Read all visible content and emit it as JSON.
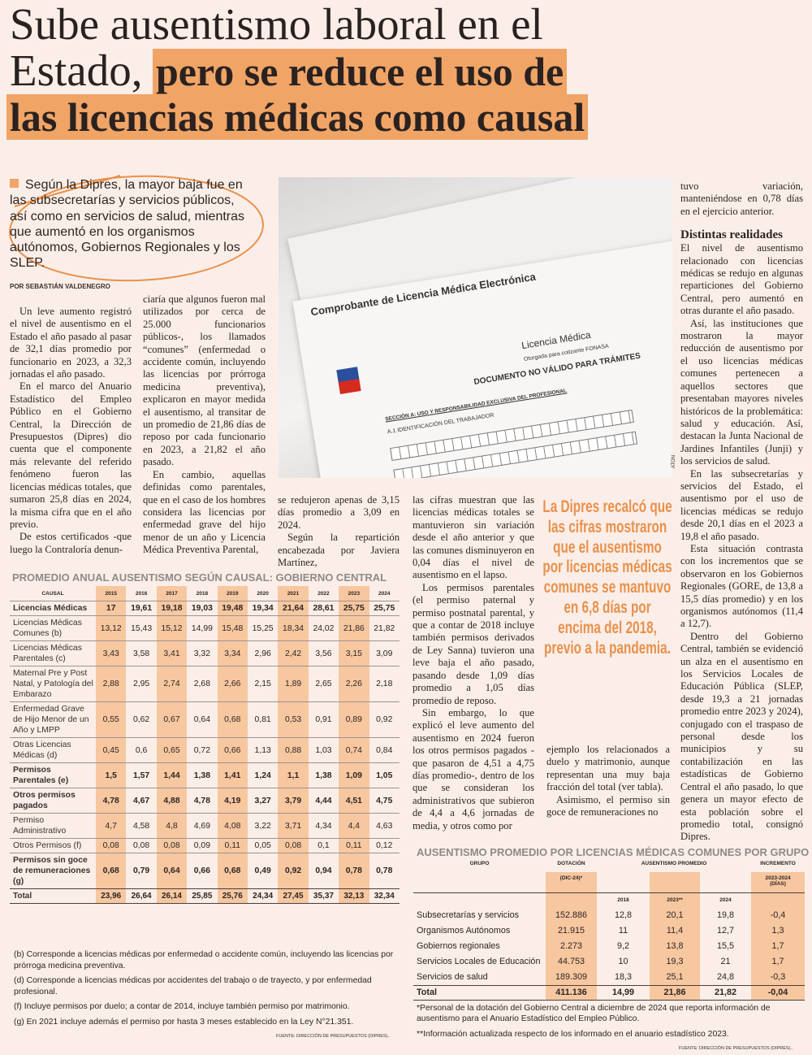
{
  "headline": {
    "line1": "Sube ausentismo laboral en el",
    "line2_plain": "Estado,",
    "line2_highlight": "pero se reduce el uso de",
    "line3_highlight": "las licencias médicas como causal"
  },
  "lede": "Según la Dipres, la mayor baja fue en las subsecretarías y servicios públicos, así como en servicios de salud, mientras que aumentó en los organismos autónomos, Gobiernos Regionales y los SLEP.",
  "byline": "POR SEBASTIÁN VALDENEGRO",
  "photo": {
    "doc_title": "Comprobante de Licencia Médica Electrónica",
    "doc_label": "Licencia Médica",
    "doc_sub": "Otorgada para cotizante FONASA",
    "doc_warning": "DOCUMENTO NO VÁLIDO PARA TRÁMITES",
    "doc_section": "SECCIÓN A: USO Y RESPONSABILIDAD EXCLUSIVA DEL PROFESIONAL",
    "doc_id": "A.1 IDENTIFICACIÓN DEL TRABAJADOR",
    "credit": "ATON"
  },
  "body": {
    "col1": [
      "Un leve aumento registró el nivel de ausentismo en el Estado el año pasado al pasar de 32,1 días promedio por funcionario en 2023, a 32,3 jornadas el año pasado.",
      "En el marco del Anuario Estadístico del Empleo Público en el Gobierno Central, la Dirección de Presupuestos (Dipres) dio cuenta que el componente más relevante del referido fenómeno fueron las licencias médicas totales, que sumaron 25,8 días en 2024, la misma cifra que en el año previo.",
      "De estos certificados -que luego la Contraloría denun-"
    ],
    "col2": [
      "ciaría que algunos fueron mal utilizados por cerca de 25.000 funcionarios públicos-, los llamados “comunes” (enfermedad o accidente común, incluyendo las licencias por prórroga medicina preventiva), explicaron en mayor medida el ausentismo, al transitar de un promedio de 21,86 días de reposo por cada funcionario en 2023, a 21,82 el año pasado.",
      "En cambio, aquellas definidas como parentales, que en el caso de los hombres considera las licencias por enfermedad grave del hijo menor de un año y Licencia Médica Preventiva Parental,"
    ],
    "col3": [
      "se redujeron apenas de 3,15 días promedio a 3,09 en 2024.",
      "Según la repartición encabezada por Javiera Martínez,"
    ],
    "col4": [
      "las cifras muestran que las licencias médicas totales se mantuvieron sin variación desde el año anterior y que las comunes disminuyeron en 0,04 días el nivel de ausentismo en el lapso.",
      "Los permisos parentales (el permiso paternal y permiso postnatal parental, y que a contar de 2018 incluye también permisos derivados de Ley Sanna) tuvieron una leve baja el año pasado, pasando desde 1,09 días promedio a 1,05 días promedio de reposo.",
      "Sin embargo, lo que explicó el leve aumento del ausentismo en 2024 fueron los otros permisos pagados -que pasaron de 4,51 a 4,75 días promedio-, dentro de los que se consideran los administrativos que subieron de 4,4 a 4,6 jornadas de media, y otros como por"
    ],
    "col5": [
      "ejemplo los relacionados a duelo y matrimonio, aunque representan una muy baja fracción del total (ver tabla).",
      "Asimismo, el permiso sin goce de remuneraciones no"
    ],
    "col6_intro": [
      "tuvo variación, manteniéndose en 0,78 días en el ejercicio anterior."
    ],
    "subhead": "Distintas realidades",
    "col6": [
      "El nivel de ausentismo relacionado con licencias médicas se redujo en algunas reparticiones del Gobierno Central, pero aumentó en otras durante el año pasado.",
      "Así, las instituciones que mostraron la mayor reducción de ausentismo por el uso licencias médicas comunes pertenecen a aquellos sectores que presentaban mayores niveles históricos de la problemática: salud y educación. Así, destacan la Junta Nacional de Jardines Infantiles (Junji) y los servicios de salud.",
      "En las subsecretarías y servicios del Estado, el ausentismo por el uso de licencias médicas se redujo desde 20,1 días en el 2023 a 19,8 el año pasado.",
      "Esta situación contrasta con los incrementos que se observaron en los Gobiernos Regionales (GORE, de 13,8 a 15,5 días promedio) y en los organismos autónomos (11,4 a 12,7).",
      "Dentro del Gobierno Central, también se evidenció un alza en el ausentismo en los Servicios Locales de Educación Pública (SLEP, desde 19,3 a 21 jornadas promedio entre 2023 y 2024), conjugado con el traspaso de personal desde los municipios y su contabilización en las estadísticas de Gobierno Central el año pasado, lo que genera un mayor efecto de esta población sobre el promedio total, consignó Dipres."
    ]
  },
  "pull_quote": "La Dipres recalcó que las cifras mostraron que el ausentismo por licencias médicas comunes se mantuvo en 6,8 días por encima del 2018, previo a la pandemia.",
  "table1": {
    "title": "PROMEDIO ANUAL AUSENTISMO SEGÚN CAUSAL: GOBIERNO CENTRAL",
    "col_header": "CAUSAL",
    "years": [
      "2015",
      "2016",
      "2017",
      "2018",
      "2019",
      "2020",
      "2021",
      "2022",
      "2023",
      "2024"
    ],
    "rows": [
      {
        "label": "Licencias Médicas",
        "bold": true,
        "values": [
          "17",
          "19,61",
          "19,18",
          "19,03",
          "19,48",
          "19,34",
          "21,64",
          "28,61",
          "25,75",
          "25,75"
        ]
      },
      {
        "label": "Licencias Médicas Comunes (b)",
        "bold": false,
        "values": [
          "13,12",
          "15,43",
          "15,12",
          "14,99",
          "15,48",
          "15,25",
          "18,34",
          "24,02",
          "21,86",
          "21,82"
        ]
      },
      {
        "label": "Licencias Médicas Parentales (c)",
        "bold": false,
        "values": [
          "3,43",
          "3,58",
          "3,41",
          "3,32",
          "3,34",
          "2,96",
          "2,42",
          "3,56",
          "3,15",
          "3,09"
        ]
      },
      {
        "label": "Maternal Pre y Post Natal, y Patología del Embarazo",
        "bold": false,
        "values": [
          "2,88",
          "2,95",
          "2,74",
          "2,68",
          "2,66",
          "2,15",
          "1,89",
          "2,65",
          "2,26",
          "2,18"
        ]
      },
      {
        "label": "Enfermedad Grave de Hijo Menor de un Año y LMPP",
        "bold": false,
        "values": [
          "0,55",
          "0,62",
          "0,67",
          "0,64",
          "0,68",
          "0,81",
          "0,53",
          "0,91",
          "0,89",
          "0,92"
        ]
      },
      {
        "label": "Otras Licencias Médicas (d)",
        "bold": false,
        "values": [
          "0,45",
          "0,6",
          "0,65",
          "0,72",
          "0,66",
          "1,13",
          "0,88",
          "1,03",
          "0,74",
          "0,84"
        ]
      },
      {
        "label": "Permisos Parentales (e)",
        "bold": true,
        "values": [
          "1,5",
          "1,57",
          "1,44",
          "1,38",
          "1,41",
          "1,24",
          "1,1",
          "1,38",
          "1,09",
          "1,05"
        ]
      },
      {
        "label": "Otros permisos pagados",
        "bold": true,
        "values": [
          "4,78",
          "4,67",
          "4,88",
          "4,78",
          "4,19",
          "3,27",
          "3,79",
          "4,44",
          "4,51",
          "4,75"
        ]
      },
      {
        "label": "Permiso Administrativo",
        "bold": false,
        "values": [
          "4,7",
          "4,58",
          "4,8",
          "4,69",
          "4,08",
          "3,22",
          "3,71",
          "4,34",
          "4,4",
          "4,63"
        ]
      },
      {
        "label": "Otros Permisos (f)",
        "bold": false,
        "values": [
          "0,08",
          "0,08",
          "0,08",
          "0,09",
          "0,11",
          "0,05",
          "0,08",
          "0,1",
          "0,11",
          "0,12"
        ]
      },
      {
        "label": "Permisos sin goce de remuneraciones (g)",
        "bold": true,
        "values": [
          "0,68",
          "0,79",
          "0,64",
          "0,66",
          "0,68",
          "0,49",
          "0,92",
          "0,94",
          "0,78",
          "0,78"
        ]
      }
    ],
    "total": {
      "label": "Total",
      "values": [
        "23,96",
        "26,64",
        "26,14",
        "25,85",
        "25,76",
        "24,34",
        "27,45",
        "35,37",
        "32,13",
        "32,34"
      ]
    },
    "footnotes": [
      "(b) Corresponde a licencias médicas por enfermedad o accidente común, incluyendo las licencias por prórroga medicina preventiva.",
      "(d) Corresponde a licencias médicas por accidentes del trabajo o de trayecto, y por enfermedad profesional.",
      "(f) Incluye permisos por duelo; a contar de 2014, incluye también permiso por matrimonio.",
      "(g) En 2021 incluye además el permiso por hasta 3 meses establecido en la Ley N°21.351."
    ],
    "source": "FUENTE: DIRECCIÓN DE PRESUPUESTOS (DIPRES).."
  },
  "table2": {
    "title": "AUSENTISMO PROMEDIO POR LICENCIAS MÉDICAS COMUNES POR GRUPO",
    "headers": {
      "grupo": "GRUPO",
      "dotacion": "DOTACIÓN",
      "dotacion_sub": "(DIC-24)*",
      "ausentismo": "AUSENTISMO PROMEDIO",
      "incremento": "INCREMENTO",
      "incremento_sub": "2023-2024 (DÍAS)"
    },
    "years": [
      "2018",
      "2023**",
      "2024"
    ],
    "rows": [
      {
        "grupo": "Subsecretarías y servicios",
        "dotacion": "152.886",
        "y2018": "12,8",
        "y2023": "20,1",
        "y2024": "19,8",
        "incremento": "-0,4"
      },
      {
        "grupo": "Organismos Autónomos",
        "dotacion": "21.915",
        "y2018": "11",
        "y2023": "11,4",
        "y2024": "12,7",
        "incremento": "1,3"
      },
      {
        "grupo": "Gobiernos regionales",
        "dotacion": "2.273",
        "y2018": "9,2",
        "y2023": "13,8",
        "y2024": "15,5",
        "incremento": "1,7"
      },
      {
        "grupo": "Servicios Locales de Educación",
        "dotacion": "44.753",
        "y2018": "10",
        "y2023": "19,3",
        "y2024": "21",
        "incremento": "1,7"
      },
      {
        "grupo": "Servicios de salud",
        "dotacion": "189.309",
        "y2018": "18,3",
        "y2023": "25,1",
        "y2024": "24,8",
        "incremento": "-0,3"
      }
    ],
    "total": {
      "grupo": "Total",
      "dotacion": "411.136",
      "y2018": "14,99",
      "y2023": "21,86",
      "y2024": "21,82",
      "incremento": "-0,04"
    },
    "footnotes": [
      "*Personal de la dotación del Gobierno Central a diciembre de 2024 que reporta información de ausentismo para el Anuario Estadístico del Empleo Público.",
      "**Información actualizada respecto de los informado en el anuario estadístico 2023."
    ],
    "source": "FUENTE: DIRECCIÓN DE PRESUPUESTOS (DIPRES).."
  },
  "colors": {
    "background": "#fbeee8",
    "accent": "#f0a466",
    "column_highlight": "#f7c7a0",
    "quote": "#e8914c",
    "table_title": "#8f8a88"
  }
}
